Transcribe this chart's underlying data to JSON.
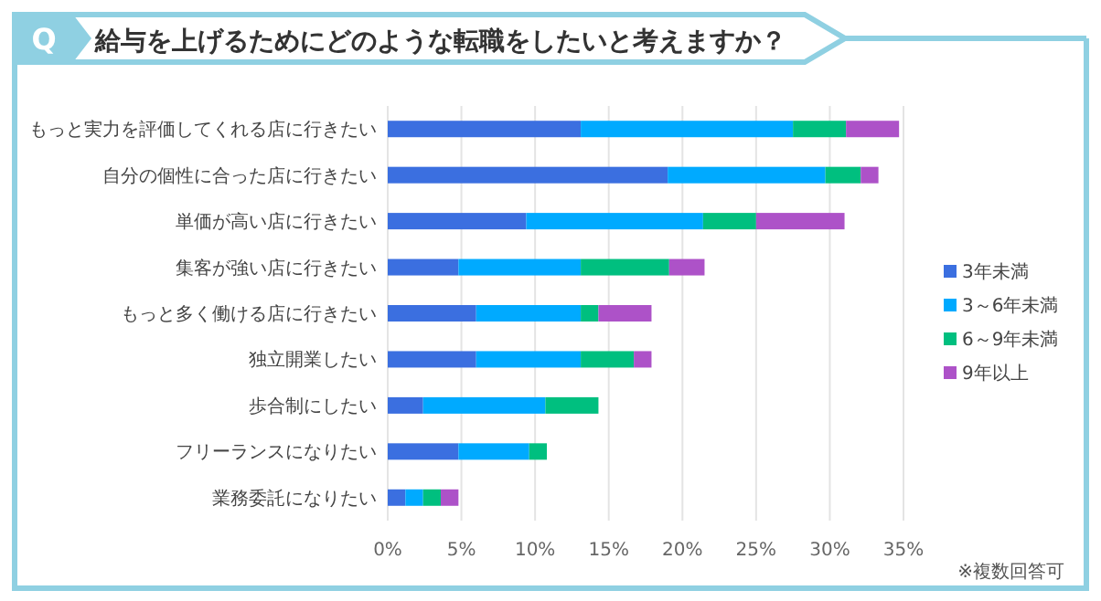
{
  "chart_data": {
    "type": "bar",
    "orientation": "horizontal",
    "stacked": true,
    "title": "給与を上げるためにどのような転職をしたいと考えますか？",
    "categories": [
      "もっと実力を評価してくれる店に行きたい",
      "自分の個性に合った店に行きたい",
      "単価が高い店に行きたい",
      "集客が強い店に行きたい",
      "もっと多く働ける店に行きたい",
      "独立開業したい",
      "歩合制にしたい",
      "フリーランスになりたい",
      "業務委託になりたい"
    ],
    "series": [
      {
        "name": "3年未満",
        "color": "#3b6fe0",
        "values": [
          13.1,
          19.0,
          9.4,
          4.8,
          6.0,
          6.0,
          2.4,
          4.8,
          1.2
        ]
      },
      {
        "name": "3～6年未満",
        "color": "#00aaff",
        "values": [
          14.4,
          10.7,
          12.0,
          8.3,
          7.1,
          7.1,
          8.3,
          4.8,
          1.2
        ]
      },
      {
        "name": "6～9年未満",
        "color": "#00bf7f",
        "values": [
          3.6,
          2.4,
          3.6,
          6.0,
          1.2,
          3.6,
          3.6,
          1.2,
          1.2
        ]
      },
      {
        "name": "9年以上",
        "color": "#ad52c8",
        "values": [
          3.6,
          1.2,
          6.0,
          2.4,
          3.6,
          1.2,
          0,
          0,
          1.2
        ]
      }
    ],
    "xlim": [
      0,
      35
    ],
    "xticks": [
      {
        "value": 0,
        "label": "0%"
      },
      {
        "value": 5,
        "label": "5%"
      },
      {
        "value": 10,
        "label": "10%"
      },
      {
        "value": 15,
        "label": "15%"
      },
      {
        "value": 20,
        "label": "20%"
      },
      {
        "value": 25,
        "label": "25%"
      },
      {
        "value": 30,
        "label": "30%"
      },
      {
        "value": 35,
        "label": "35%"
      }
    ],
    "grid": "x",
    "legend": "right",
    "annotations": [
      "Q",
      "※複数回答可"
    ]
  }
}
